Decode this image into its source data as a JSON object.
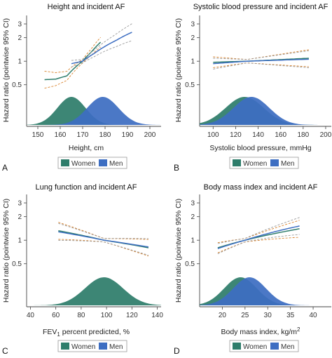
{
  "colors": {
    "women": "#2e7d6b",
    "men": "#3d6ec2",
    "ci_women": "#d9822b",
    "ci_men": "#9a9a9a",
    "axis": "#444444"
  },
  "chart_data": [
    {
      "type": "line",
      "panel_letter": "A",
      "title": "Height and incident AF",
      "xlabel": "Height, cm",
      "ylabel": "Hazard ratio (pointwise 95% CI)",
      "xlim": [
        145,
        205
      ],
      "xticks": [
        150,
        160,
        170,
        180,
        190,
        200
      ],
      "yscale": "log",
      "ylim": [
        0.38,
        3.4
      ],
      "yticks": [
        0.5,
        1,
        2,
        3
      ],
      "legend": [
        "Women",
        "Men"
      ],
      "series": [
        {
          "name": "Women",
          "x": [
            153,
            158,
            163,
            167,
            170,
            174,
            178
          ],
          "y": [
            0.58,
            0.59,
            0.65,
            0.85,
            1.0,
            1.32,
            1.75
          ]
        },
        {
          "name": "Men",
          "x": [
            165,
            170,
            175,
            180,
            185,
            192
          ],
          "y": [
            0.93,
            1.0,
            1.25,
            1.55,
            1.85,
            2.35
          ]
        }
      ],
      "density": [
        {
          "name": "Women",
          "mean": 165,
          "sd": 6.3
        },
        {
          "name": "Men",
          "mean": 179,
          "sd": 7.0
        }
      ]
    },
    {
      "type": "line",
      "panel_letter": "B",
      "title": "Systolic blood pressure and incident AF",
      "xlabel": "Systolic blood pressure, mmHg",
      "ylabel": "Hazard ratio (pointwise 95% CI)",
      "xlim": [
        88,
        205
      ],
      "xticks": [
        100,
        120,
        140,
        160,
        180,
        200
      ],
      "yscale": "log",
      "ylim": [
        0.38,
        3.4
      ],
      "yticks": [
        0.5,
        1,
        2,
        3
      ],
      "legend": [
        "Women",
        "Men"
      ],
      "series": [
        {
          "name": "Women",
          "x": [
            100,
            130,
            185
          ],
          "y": [
            0.97,
            1.0,
            1.09
          ]
        },
        {
          "name": "Men",
          "x": [
            100,
            130,
            185
          ],
          "y": [
            0.93,
            1.0,
            1.06
          ]
        }
      ],
      "density": [
        {
          "name": "Women",
          "mean": 128,
          "sd": 17
        },
        {
          "name": "Men",
          "mean": 134,
          "sd": 16
        }
      ]
    },
    {
      "type": "line",
      "panel_letter": "C",
      "title": "Lung function and incident AF",
      "xlabel": "FEV1 percent predicted, %",
      "ylabel": "Hazard ratio (pointwise 95% CI)",
      "xlim": [
        37,
        143
      ],
      "xticks": [
        40,
        60,
        80,
        100,
        120,
        140
      ],
      "yscale": "log",
      "ylim": [
        0.38,
        3.4
      ],
      "yticks": [
        0.5,
        1,
        2,
        3
      ],
      "legend": [
        "Women",
        "Men"
      ],
      "series": [
        {
          "name": "Women",
          "x": [
            62,
            98,
            133
          ],
          "y": [
            1.32,
            1.0,
            0.8
          ]
        },
        {
          "name": "Men",
          "x": [
            62,
            98,
            133
          ],
          "y": [
            1.28,
            1.0,
            0.82
          ]
        }
      ],
      "density": [
        {
          "name": "Women",
          "mean": 98,
          "sd": 15
        }
      ]
    },
    {
      "type": "line",
      "panel_letter": "D",
      "title": "Body mass index and incident AF",
      "xlabel": "Body mass index, kg/m2",
      "ylabel": "Hazard ratio (pointwise 95% CI)",
      "xlim": [
        15,
        44
      ],
      "xticks": [
        20,
        25,
        30,
        35,
        40
      ],
      "yscale": "log",
      "ylim": [
        0.38,
        3.4
      ],
      "yticks": [
        0.5,
        1,
        2,
        3
      ],
      "legend": [
        "Women",
        "Men"
      ],
      "series": [
        {
          "name": "Women",
          "x": [
            19,
            25,
            37
          ],
          "y": [
            0.8,
            1.0,
            1.4
          ]
        },
        {
          "name": "Men",
          "x": [
            19,
            25,
            37
          ],
          "y": [
            0.78,
            1.0,
            1.52
          ]
        }
      ],
      "density": [
        {
          "name": "Women",
          "mean": 24,
          "sd": 3.6
        },
        {
          "name": "Men",
          "mean": 26,
          "sd": 3.6
        }
      ]
    }
  ]
}
